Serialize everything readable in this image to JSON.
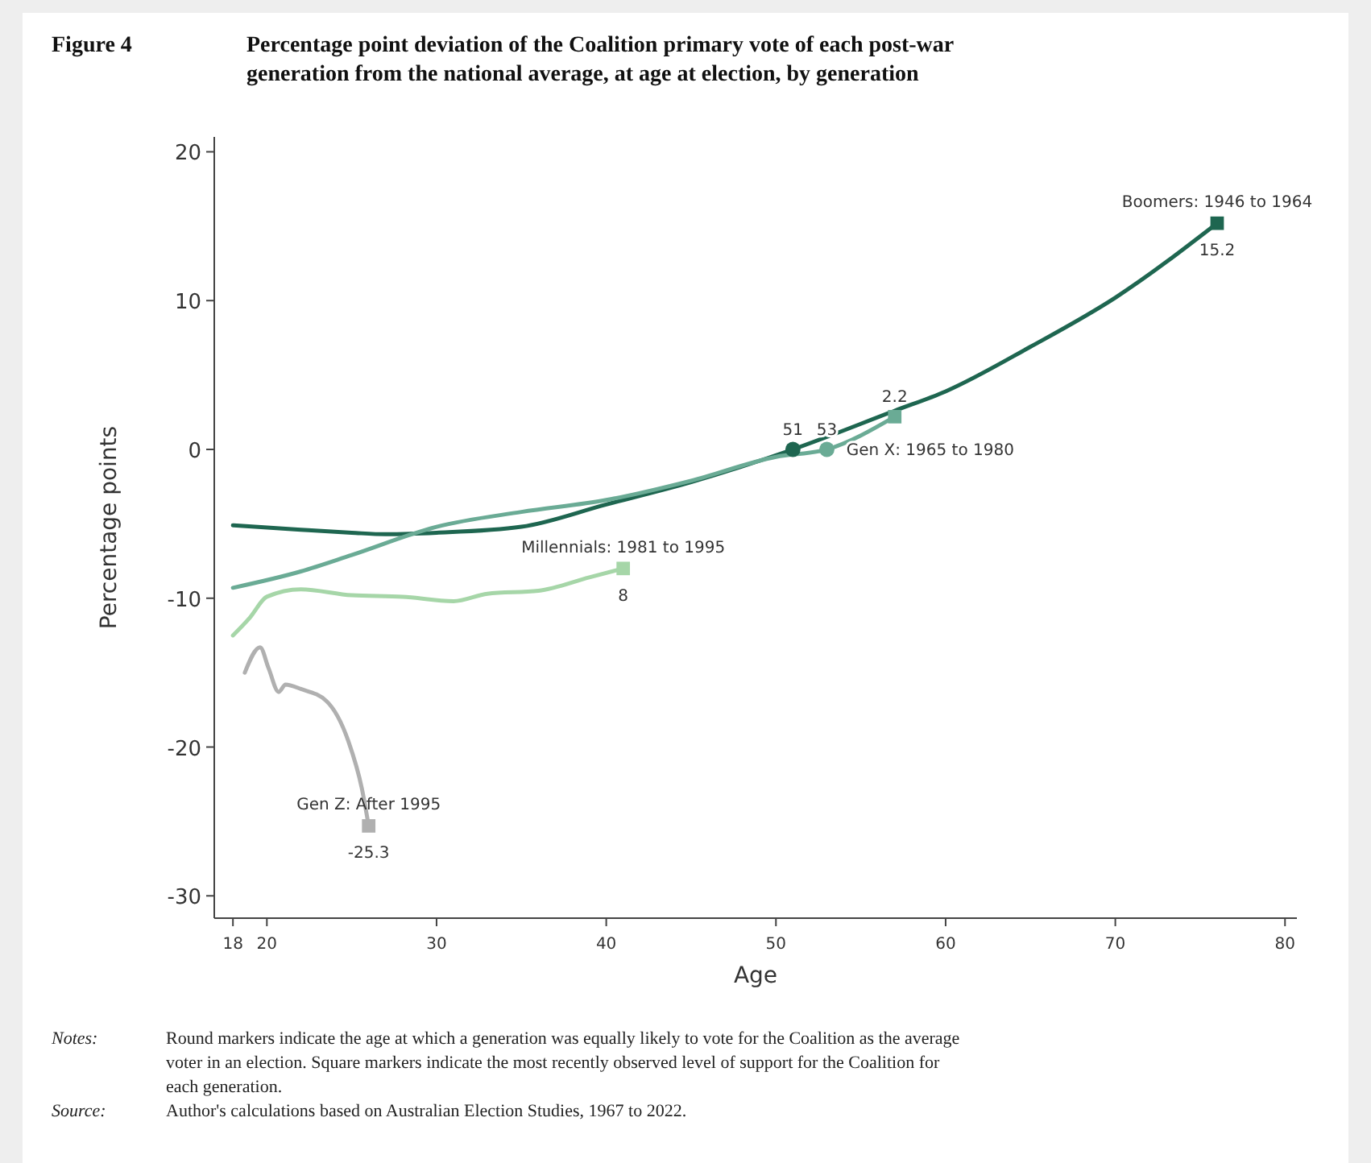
{
  "chart_data": {
    "type": "line",
    "title": "Percentage point deviation of the Coalition primary vote of each post-war generation from the national average, at age at election, by generation",
    "xlabel": "Age",
    "ylabel": "Percentage points",
    "xlim": [
      16.9,
      80.7
    ],
    "ylim": [
      -31.5,
      21
    ],
    "xticks": [
      18,
      20,
      30,
      40,
      50,
      60,
      70,
      80
    ],
    "yticks": [
      -30,
      -20,
      -10,
      0,
      10,
      20
    ],
    "annotations": [
      "Figure 4",
      {
        "text": "51",
        "x": 51,
        "y": 0
      },
      {
        "text": "53",
        "x": 53,
        "y": 0
      },
      {
        "text": "8",
        "x": 41,
        "y": -8
      },
      "Notes:",
      "Round markers indicate the age at which a generation was equally likely to vote for the Coalition as the average voter in an election. Square markers indicate the most recently observed level of support for the Coalition for each generation.",
      "Source:",
      "Author's calculations based on Australian Election Studies, 1967 to 2022."
    ],
    "series": [
      {
        "name": "Boomers: 1946 to 1964",
        "color": "#1e6650",
        "x": [
          18,
          22,
          25,
          27,
          30,
          35,
          40,
          45,
          51,
          57,
          60,
          65,
          70,
          76
        ],
        "values": [
          -5.1,
          -5.4,
          -5.6,
          -5.7,
          -5.6,
          -5.2,
          -3.7,
          -2.2,
          0,
          2.6,
          3.9,
          6.9,
          10.2,
          15.2
        ]
      },
      {
        "name": "Gen X: 1965 to 1980",
        "color": "#6aab95",
        "x": [
          18,
          22,
          25,
          30,
          35,
          40,
          45,
          50,
          53,
          57
        ],
        "values": [
          -9.3,
          -8.2,
          -7.1,
          -5.2,
          -4.2,
          -3.4,
          -2.1,
          -0.5,
          0,
          2.2
        ]
      },
      {
        "name": "Millennials: 1981 to 1995",
        "color": "#a6d6a8",
        "x": [
          18,
          19,
          20,
          22,
          25,
          28,
          31,
          33,
          36,
          39,
          41
        ],
        "values": [
          -12.5,
          -11.3,
          -9.9,
          -9.4,
          -9.8,
          -9.9,
          -10.2,
          -9.7,
          -9.5,
          -8.6,
          -8
        ]
      },
      {
        "name": "Gen Z: After 1995",
        "color": "#b0b0b0",
        "x": [
          18.7,
          19.6,
          20.1,
          20.7,
          21.1,
          22,
          23.5,
          24.8,
          25.6,
          26
        ],
        "values": [
          -15,
          -13.3,
          -14.7,
          -16.3,
          -15.8,
          -16.1,
          -16.9,
          -19.6,
          -22.8,
          -25.3
        ]
      },
      {
        "type": "scatter",
        "marker": "circle",
        "x": [
          51,
          53
        ],
        "values": [
          0,
          0
        ],
        "colors": [
          "#1e6650",
          "#6aab95"
        ]
      },
      {
        "type": "scatter",
        "marker": "square",
        "x": [
          76,
          57,
          41,
          26
        ],
        "values": [
          15.2,
          2.2,
          -8,
          -25.3
        ],
        "colors": [
          "#1e6650",
          "#6aab95",
          "#a6d6a8",
          "#b0b0b0"
        ],
        "value_labels": [
          "15.2",
          "2.2",
          null,
          "-25.3"
        ]
      }
    ]
  }
}
